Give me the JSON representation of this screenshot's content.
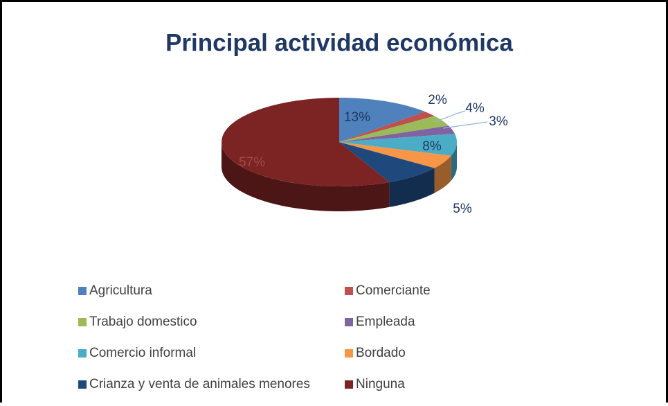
{
  "chart_data": {
    "type": "pie",
    "title": "Principal actividad económica",
    "categories": [
      "Agricultura",
      "Comerciante",
      "Trabajo domestico",
      "Empleada",
      "Comercio informal",
      "Bordado",
      "Crianza y venta de animales menores",
      "Ninguna"
    ],
    "values": [
      13,
      2,
      4,
      3,
      8,
      5,
      8,
      57
    ],
    "value_labels": [
      "13%",
      "2%",
      "4%",
      "3%",
      "8%",
      "5%",
      null,
      "57%"
    ],
    "colors": [
      "#4f81bd",
      "#c0504d",
      "#9bbb59",
      "#8064a2",
      "#4bacc6",
      "#f79646",
      "#1f497d",
      "#7b2423"
    ],
    "legend": "bottom"
  }
}
